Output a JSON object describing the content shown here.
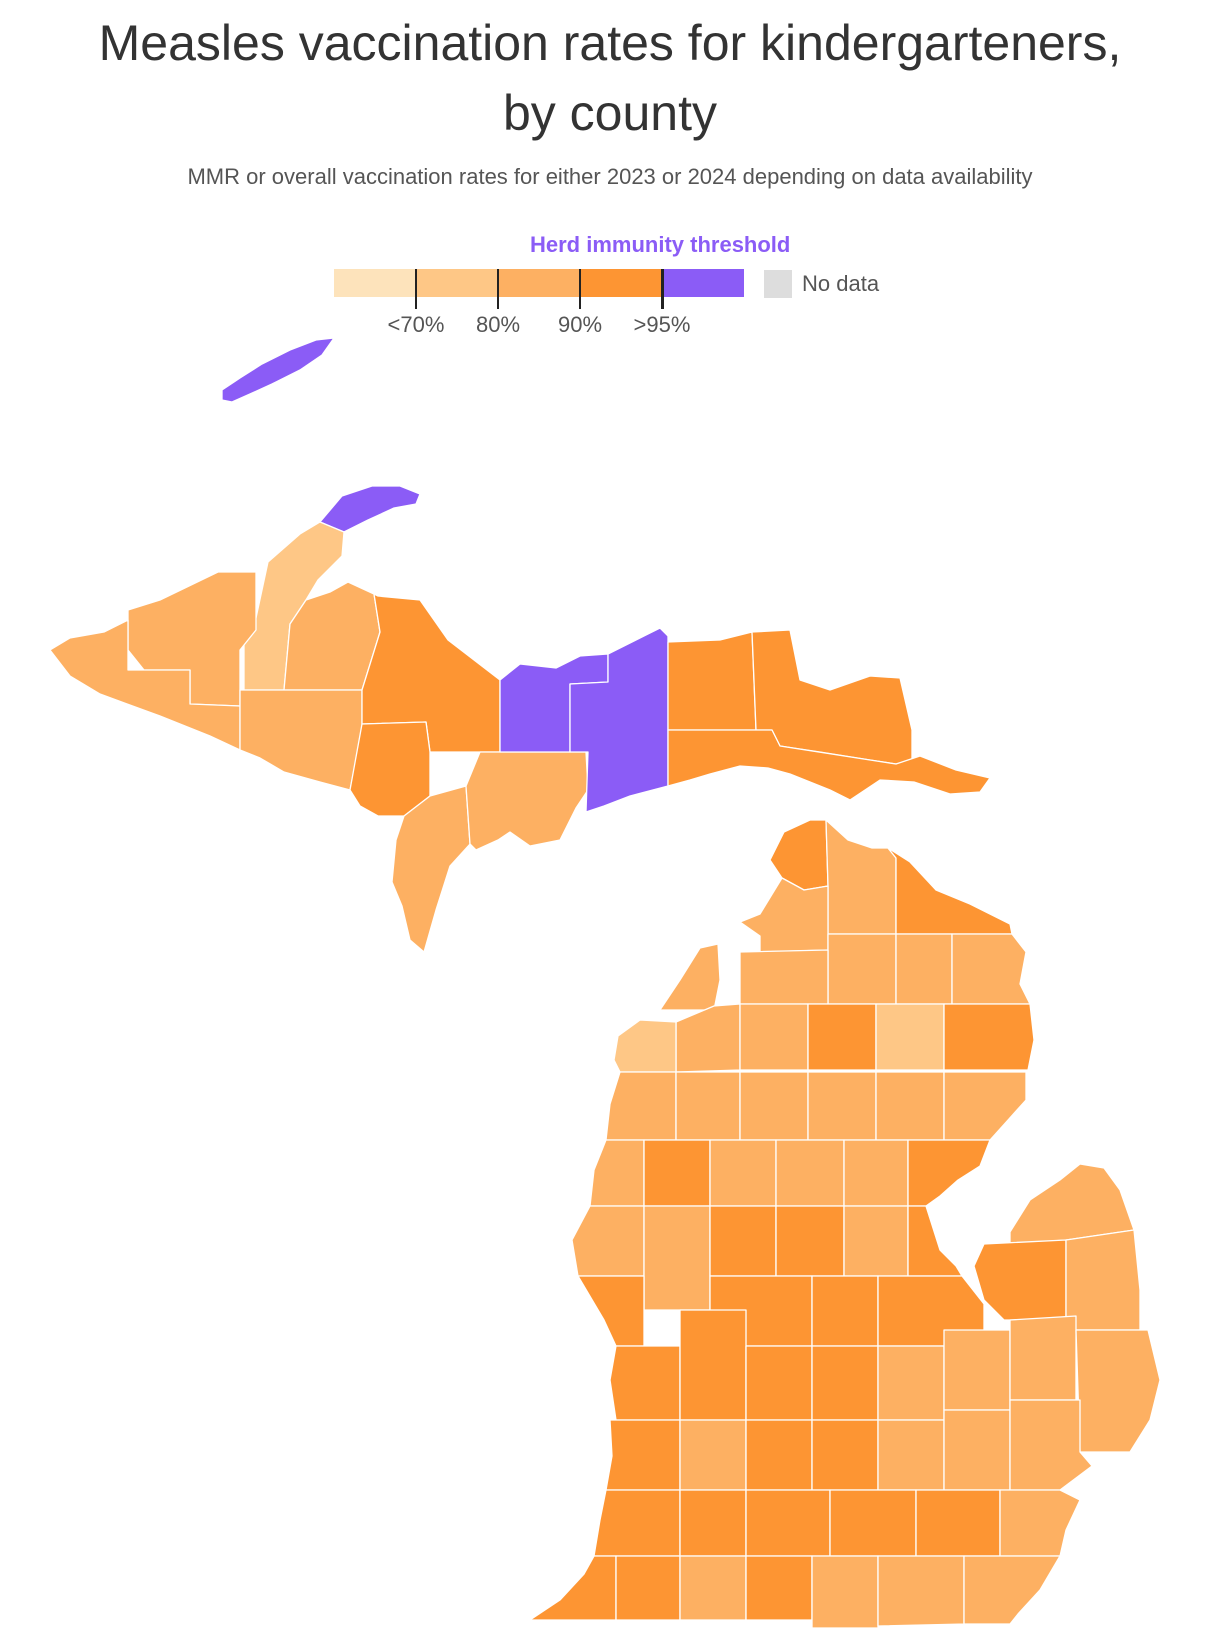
{
  "header": {
    "title_line1": "Measles vaccination rates for kindergarteners,",
    "title_line2": "by county",
    "subtitle": "MMR or overall vaccination rates for either 2023 or 2024 depending on data availability"
  },
  "legend": {
    "threshold_label": "Herd immunity threshold",
    "bins": [
      {
        "range": "under 70%",
        "color": "#fde3bb"
      },
      {
        "range": "70-80%",
        "color": "#fec786"
      },
      {
        "range": "80-90%",
        "color": "#fdb062"
      },
      {
        "range": "90-95%",
        "color": "#fd9533"
      },
      {
        "range": "over 95%",
        "color": "#8b5cf6"
      }
    ],
    "tick_labels": [
      "<70%",
      "80%",
      "90%",
      ">95%"
    ],
    "no_data_label": "No data",
    "no_data_color": "#dddddd",
    "threshold_color": "#8b5cf6"
  },
  "map": {
    "region": "Michigan",
    "unit": "county",
    "color_key": {
      "purple": "over 95%",
      "dark_orange": "90-95%",
      "medium_orange": "80-90%",
      "light_orange": "70-80%"
    }
  }
}
